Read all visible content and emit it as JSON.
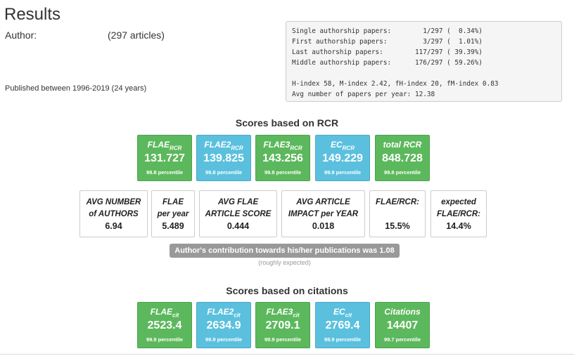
{
  "header": {
    "title": "Results",
    "author_label": "Author:",
    "article_count": "(297 articles)",
    "published": "Published between 1996-2019 (24 years)"
  },
  "stats_box": {
    "lines": [
      "Single authorship papers:        1/297 (  0.34%)",
      "First authorship papers:         3/297 (  1.01%)",
      "Last authorship papers:        117/297 ( 39.39%)",
      "Middle authorship papers:      176/297 ( 59.26%)",
      "",
      "H-index 58, M-index 2.42, fH-index 20, fM-index 0.83",
      "Avg number of papers per year: 12.38"
    ]
  },
  "rcr": {
    "heading": "Scores based on RCR",
    "tiles": [
      {
        "label": "FLAE",
        "sub": "RCR",
        "value": "131.727",
        "percentile": "99.8 percentile",
        "color": "#5cb85c"
      },
      {
        "label": "FLAE2",
        "sub": "RCR",
        "value": "139.825",
        "percentile": "99.8 percentile",
        "color": "#5bc0de"
      },
      {
        "label": "FLAE3",
        "sub": "RCR",
        "value": "143.256",
        "percentile": "99.8 percentile",
        "color": "#5cb85c"
      },
      {
        "label": "EC",
        "sub": "RCR",
        "value": "149.229",
        "percentile": "99.9 percentile",
        "color": "#5bc0de"
      },
      {
        "label": "total RCR",
        "sub": "",
        "value": "848.728",
        "percentile": "99.8 percentile",
        "color": "#5cb85c"
      }
    ],
    "boxes": [
      {
        "label": "AVG NUMBER\nof AUTHORS",
        "value": "6.94"
      },
      {
        "label": "FLAE\nper year",
        "value": "5.489"
      },
      {
        "label": "AVG FLAE\nARTICLE SCORE",
        "value": "0.444"
      },
      {
        "label": "AVG ARTICLE\nIMPACT per YEAR",
        "value": "0.018"
      },
      {
        "label": "FLAE/RCR:",
        "value": "15.5%"
      },
      {
        "label": "expected\nFLAE/RCR:",
        "value": "14.4%"
      }
    ],
    "contribution": "Author's contribution towards his/her publications was 1.08",
    "contribution_note": "(roughly expected)"
  },
  "citations": {
    "heading": "Scores based on citations",
    "tiles": [
      {
        "label": "FLAE",
        "sub": "cit",
        "value": "2523.4",
        "percentile": "99.9 percentile",
        "color": "#5cb85c"
      },
      {
        "label": "FLAE2",
        "sub": "cit",
        "value": "2634.9",
        "percentile": "99.9 percentile",
        "color": "#5bc0de"
      },
      {
        "label": "FLAE3",
        "sub": "cit",
        "value": "2709.1",
        "percentile": "99.9 percentile",
        "color": "#5cb85c"
      },
      {
        "label": "EC",
        "sub": "cit",
        "value": "2769.4",
        "percentile": "99.9 percentile",
        "color": "#5bc0de"
      },
      {
        "label": "Citations",
        "sub": "",
        "value": "14407",
        "percentile": "99.7 percentile",
        "color": "#5cb85c"
      }
    ]
  }
}
